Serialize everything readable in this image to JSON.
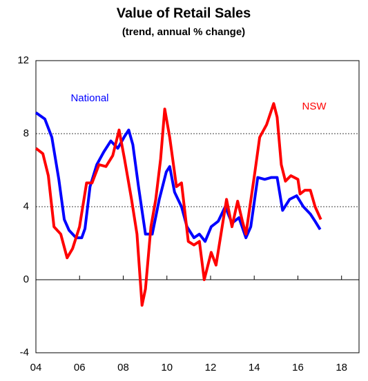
{
  "chart_data": {
    "type": "line",
    "title": "Value of Retail Sales",
    "subtitle": "(trend, annual % change)",
    "xlim": [
      2004,
      2018.8
    ],
    "xticks": [
      {
        "value": 2004,
        "label": "04"
      },
      {
        "value": 2006,
        "label": "06"
      },
      {
        "value": 2008,
        "label": "08"
      },
      {
        "value": 2010,
        "label": "10"
      },
      {
        "value": 2012,
        "label": "12"
      },
      {
        "value": 2014,
        "label": "14"
      },
      {
        "value": 2016,
        "label": "16"
      },
      {
        "value": 2018,
        "label": "18"
      }
    ],
    "ylim": [
      -4,
      12
    ],
    "yticks": [
      -4,
      0,
      4,
      8,
      12
    ],
    "grid": true,
    "series": [
      {
        "name": "National",
        "color": "#0000ff",
        "x": [
          2004.0,
          2004.41,
          2004.73,
          2005.05,
          2005.3,
          2005.52,
          2005.84,
          2006.1,
          2006.25,
          2006.48,
          2006.79,
          2007.11,
          2007.43,
          2007.75,
          2008.06,
          2008.25,
          2008.44,
          2008.7,
          2009.02,
          2009.33,
          2009.65,
          2009.97,
          2010.13,
          2010.35,
          2010.67,
          2010.92,
          2011.24,
          2011.49,
          2011.75,
          2012.03,
          2012.35,
          2012.67,
          2012.98,
          2013.3,
          2013.62,
          2013.84,
          2014.16,
          2014.48,
          2014.79,
          2015.05,
          2015.3,
          2015.62,
          2015.94,
          2016.25,
          2016.57,
          2016.79,
          2017.02
        ],
        "values": [
          9.15,
          8.8,
          7.8,
          5.5,
          3.3,
          2.7,
          2.3,
          2.3,
          2.8,
          5.1,
          6.3,
          7.0,
          7.6,
          7.2,
          7.85,
          8.2,
          7.4,
          5.1,
          2.5,
          2.5,
          4.4,
          5.9,
          6.2,
          4.8,
          4.0,
          2.9,
          2.3,
          2.5,
          2.1,
          2.9,
          3.2,
          4.0,
          3.1,
          3.4,
          2.3,
          2.9,
          5.6,
          5.5,
          5.6,
          5.6,
          3.8,
          4.4,
          4.6,
          4.0,
          3.6,
          3.2,
          2.75
        ]
      },
      {
        "name": "NSW",
        "color": "#ff0000",
        "x": [
          2004.0,
          2004.32,
          2004.57,
          2004.83,
          2005.14,
          2005.43,
          2005.68,
          2006.0,
          2006.32,
          2006.57,
          2006.89,
          2007.21,
          2007.52,
          2007.81,
          2008.06,
          2008.38,
          2008.63,
          2008.86,
          2009.02,
          2009.27,
          2009.49,
          2009.71,
          2009.9,
          2010.13,
          2010.44,
          2010.67,
          2010.98,
          2011.24,
          2011.49,
          2011.71,
          2012.03,
          2012.25,
          2012.57,
          2012.73,
          2012.98,
          2013.24,
          2013.46,
          2013.62,
          2014.03,
          2014.25,
          2014.57,
          2014.89,
          2015.05,
          2015.24,
          2015.43,
          2015.68,
          2016.0,
          2016.1,
          2016.32,
          2016.57,
          2016.79,
          2017.05
        ],
        "values": [
          7.2,
          6.9,
          5.7,
          2.9,
          2.5,
          1.2,
          1.7,
          2.9,
          5.3,
          5.3,
          6.3,
          6.2,
          6.8,
          8.2,
          6.6,
          4.4,
          2.5,
          -1.4,
          -0.5,
          2.9,
          4.4,
          6.6,
          9.35,
          7.8,
          5.1,
          5.3,
          2.1,
          1.9,
          2.1,
          0,
          1.5,
          0.8,
          3.2,
          4.4,
          2.9,
          4.3,
          3.2,
          2.5,
          5.9,
          7.8,
          8.5,
          9.65,
          8.9,
          6.3,
          5.4,
          5.7,
          5.5,
          4.7,
          4.9,
          4.9,
          4.0,
          3.3
        ]
      }
    ]
  }
}
